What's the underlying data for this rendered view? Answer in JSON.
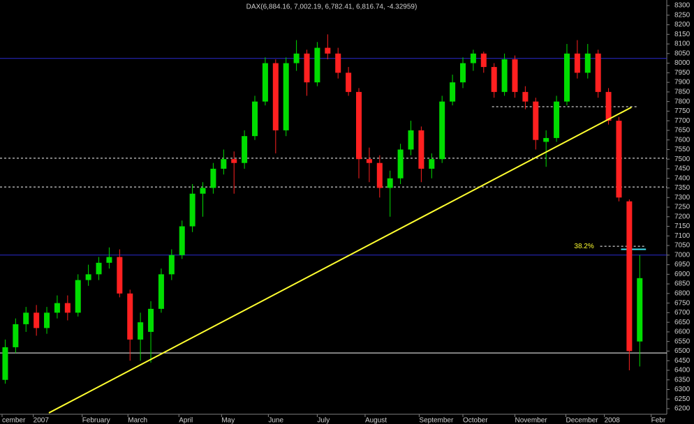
{
  "chart_data": {
    "type": "candlestick",
    "title": "DAX(6,884.16, 7,002.19, 6,782.41, 6,816.74, -4.32959)",
    "up_color": "#00dd00",
    "down_color": "#ff2020",
    "x": [
      0.5,
      1.5,
      2.5,
      3.5,
      4.5,
      5.5,
      6.5,
      7.5,
      8.5,
      9.5,
      10.5,
      11.5,
      12.5,
      13.5,
      14.5,
      15.5,
      16.5,
      17.5,
      18.5,
      19.5,
      20.5,
      21.5,
      22.5,
      23.5,
      24.5,
      25.5,
      26.5,
      27.5,
      28.5,
      29.5,
      30.5,
      31.5,
      32.5,
      33.5,
      34.5,
      35.5,
      36.5,
      37.5,
      38.5,
      39.5,
      40.5,
      41.5,
      42.5,
      43.5,
      44.5,
      45.5,
      46.5,
      47.5,
      48.5,
      49.5,
      50.5,
      51.5,
      52.5,
      53.5,
      54.5,
      55.5,
      56.5,
      57.5,
      58.5,
      59.5,
      60.5,
      61.5
    ],
    "open": [
      6350,
      6520,
      6640,
      6700,
      6620,
      6700,
      6750,
      6700,
      6870,
      6900,
      6960,
      6990,
      6800,
      6560,
      6600,
      6720,
      6900,
      7000,
      7150,
      7320,
      7350,
      7450,
      7500,
      7480,
      7620,
      7800,
      8000,
      7650,
      8000,
      8050,
      7900,
      8080,
      8050,
      7950,
      7850,
      7500,
      7480,
      7350,
      7400,
      7550,
      7650,
      7450,
      7500,
      7800,
      7900,
      8000,
      8050,
      7980,
      7850,
      8020,
      7850,
      7800,
      7590,
      7610,
      7800,
      8050,
      7950,
      8050,
      7850,
      7700,
      7280,
      6550
    ],
    "high": [
      6560,
      6670,
      6730,
      6740,
      6730,
      6790,
      6790,
      6900,
      6950,
      6990,
      7040,
      7030,
      6820,
      6700,
      6760,
      6930,
      7030,
      7180,
      7370,
      7380,
      7480,
      7550,
      7540,
      7650,
      7830,
      8030,
      8020,
      8030,
      8120,
      8070,
      8110,
      8150,
      8080,
      7980,
      7870,
      7560,
      7520,
      7440,
      7580,
      7700,
      7670,
      7530,
      7830,
      7940,
      8030,
      8070,
      8060,
      8000,
      8050,
      8040,
      7880,
      7820,
      7650,
      7830,
      8100,
      8120,
      8100,
      8070,
      7870,
      7720,
      7290,
      7000
    ],
    "low": [
      6330,
      6490,
      6600,
      6580,
      6590,
      6670,
      6660,
      6680,
      6840,
      6870,
      6930,
      6780,
      6450,
      6450,
      6440,
      6700,
      6870,
      6980,
      7120,
      7200,
      7320,
      7420,
      7320,
      7450,
      7600,
      7780,
      7530,
      7620,
      7960,
      7830,
      7880,
      8020,
      7920,
      7830,
      7400,
      7380,
      7300,
      7200,
      7370,
      7520,
      7380,
      7400,
      7480,
      7780,
      7870,
      7960,
      7950,
      7820,
      7830,
      7820,
      7760,
      7550,
      7460,
      7590,
      7780,
      7920,
      7920,
      7820,
      7680,
      7280,
      6400,
      6420
    ],
    "close": [
      6520,
      6640,
      6700,
      6620,
      6700,
      6750,
      6700,
      6870,
      6900,
      6960,
      6990,
      6800,
      6560,
      6650,
      6720,
      6900,
      7000,
      7150,
      7320,
      7350,
      7450,
      7500,
      7480,
      7620,
      7800,
      8000,
      7650,
      8000,
      8050,
      7900,
      8080,
      8050,
      7950,
      7850,
      7500,
      7480,
      7350,
      7400,
      7550,
      7650,
      7450,
      7500,
      7800,
      7900,
      8000,
      8050,
      7980,
      7850,
      8020,
      7850,
      7800,
      7600,
      7610,
      7800,
      8050,
      7950,
      8050,
      7850,
      7700,
      7300,
      6500,
      6880
    ],
    "xlim": [
      0,
      64.1
    ],
    "ylim": [
      6200,
      8300
    ],
    "xticks": [
      {
        "value": 0.2,
        "label": "cember"
      },
      {
        "value": 3.2,
        "label": "2007"
      },
      {
        "value": 7.9,
        "label": "February"
      },
      {
        "value": 12.3,
        "label": "March"
      },
      {
        "value": 17.2,
        "label": "April"
      },
      {
        "value": 21.3,
        "label": "May"
      },
      {
        "value": 25.8,
        "label": "June"
      },
      {
        "value": 30.5,
        "label": "July"
      },
      {
        "value": 35.1,
        "label": "August"
      },
      {
        "value": 40.3,
        "label": "September"
      },
      {
        "value": 44.5,
        "label": "October"
      },
      {
        "value": 49.5,
        "label": "November"
      },
      {
        "value": 54.4,
        "label": "December"
      },
      {
        "value": 58.1,
        "label": "2008"
      },
      {
        "value": 62.6,
        "label": "Febr"
      }
    ],
    "yticks": [
      6200,
      6250,
      6300,
      6350,
      6400,
      6450,
      6500,
      6550,
      6600,
      6650,
      6700,
      6750,
      6800,
      6850,
      6900,
      6950,
      7000,
      7050,
      7100,
      7150,
      7200,
      7250,
      7300,
      7350,
      7400,
      7450,
      7500,
      7550,
      7600,
      7650,
      7700,
      7750,
      7800,
      7850,
      7900,
      7950,
      8000,
      8050,
      8100,
      8150,
      8200,
      8250,
      8300
    ],
    "reference_lines": [
      {
        "value": 8025,
        "color": "#2a2ad0",
        "dashed": false,
        "x": [
          0,
          64.1
        ]
      },
      {
        "value": 7000,
        "color": "#2a2ad0",
        "dashed": false,
        "x": [
          0,
          64.1
        ]
      },
      {
        "value": 6490,
        "color": "#ffffff",
        "dashed": false,
        "x": [
          0,
          64.1
        ]
      },
      {
        "value": 7505,
        "color": "#ffffff",
        "dashed": true,
        "x": [
          0,
          64.1
        ]
      },
      {
        "value": 7355,
        "color": "#ffffff",
        "dashed": true,
        "x": [
          0,
          64.1
        ]
      },
      {
        "value": 7773,
        "color": "#ffffff",
        "dashed": true,
        "x": [
          47.3,
          61.2
        ]
      },
      {
        "value": 7046,
        "color": "#ffffff",
        "dashed": true,
        "x": [
          57.7,
          62.1
        ]
      },
      {
        "value": 7030,
        "color": "#40e0f0",
        "dashed": false,
        "x": [
          59.7,
          62.1
        ]
      }
    ],
    "trendline": {
      "color": "#ffff30",
      "x": [
        4.7,
        60.7
      ],
      "y": [
        6178,
        7770
      ]
    },
    "annotations": [
      {
        "text": "38.2%",
        "x": 55.2,
        "y": 7046,
        "color": "#ffff30"
      }
    ]
  }
}
